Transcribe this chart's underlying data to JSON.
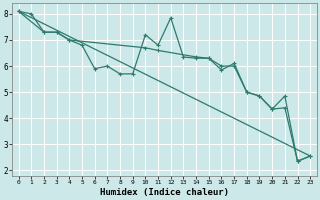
{
  "title": "",
  "xlabel": "Humidex (Indice chaleur)",
  "bg_color": "#cce8e8",
  "grid_color": "#ffffff",
  "line_color": "#2e7b6e",
  "xlim": [
    -0.5,
    23.5
  ],
  "ylim": [
    1.8,
    8.4
  ],
  "xticks": [
    0,
    1,
    2,
    3,
    4,
    5,
    6,
    7,
    8,
    9,
    10,
    11,
    12,
    13,
    14,
    15,
    16,
    17,
    18,
    19,
    20,
    21,
    22,
    23
  ],
  "yticks": [
    2,
    3,
    4,
    5,
    6,
    7,
    8
  ],
  "line1_x": [
    0,
    1,
    2,
    3,
    4,
    5,
    6,
    7,
    8,
    9,
    10,
    11,
    12,
    13,
    14,
    15,
    16,
    17,
    18,
    19,
    20,
    21,
    22,
    23
  ],
  "line1_y": [
    8.1,
    8.0,
    7.3,
    7.3,
    7.0,
    6.8,
    5.9,
    6.0,
    5.7,
    5.7,
    7.2,
    6.8,
    7.85,
    6.35,
    6.3,
    6.3,
    5.85,
    6.1,
    5.0,
    4.85,
    4.35,
    4.4,
    2.35,
    2.55
  ],
  "line2_x": [
    0,
    2,
    3,
    4,
    10,
    11,
    14,
    15,
    16,
    17,
    18,
    19,
    20,
    21,
    22,
    23
  ],
  "line2_y": [
    8.1,
    7.3,
    7.3,
    7.0,
    6.7,
    6.6,
    6.35,
    6.3,
    6.0,
    6.0,
    5.0,
    4.85,
    4.35,
    4.85,
    2.35,
    2.55
  ],
  "line3_x": [
    0,
    23
  ],
  "line3_y": [
    8.1,
    2.55
  ]
}
